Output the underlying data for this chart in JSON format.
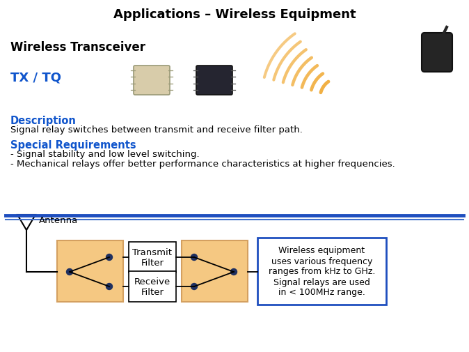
{
  "title": "Applications – Wireless Equipment",
  "title_fontsize": 13,
  "title_color": "#000000",
  "bg_color": "#ffffff",
  "section_title": "Wireless Transceiver",
  "section_title_fontsize": 12,
  "product_label": "TX / TQ",
  "product_label_color": "#1055CC",
  "product_label_fontsize": 13,
  "desc_header": "Description",
  "desc_header_color": "#1055CC",
  "desc_header_fontsize": 10.5,
  "desc_text": "Signal relay switches between transmit and receive filter path.",
  "desc_fontsize": 9.5,
  "req_header": "Special Requirements",
  "req_header_color": "#1055CC",
  "req_header_fontsize": 10.5,
  "req_lines": [
    "- Signal stability and low level switching.",
    "- Mechanical relays offer better performance characteristics at higher frequencies."
  ],
  "req_fontsize": 9.5,
  "divider_color_dark": "#1F4FBF",
  "divider_color_light": "#4070CC",
  "antenna_label": "Antenna",
  "transmit_label": "Transmit\nFilter",
  "receive_label": "Receive\nFilter",
  "relay_box_color": "#F5C882",
  "relay_box_edge": "#D4A060",
  "filter_box_color": "#ffffff",
  "filter_box_edge": "#000000",
  "note_box_color": "#ffffff",
  "note_box_edge": "#1F4FBF",
  "note_text": "Wireless equipment\nuses various frequency\nranges from kHz to GHz.\nSignal relays are used\nin < 100MHz range.",
  "note_fontsize": 9,
  "dot_color": "#1F3060",
  "line_color": "#000000",
  "diagram_fontsize": 9.5,
  "wave_color": "#F0A830",
  "wave_color2": "#E8C870"
}
